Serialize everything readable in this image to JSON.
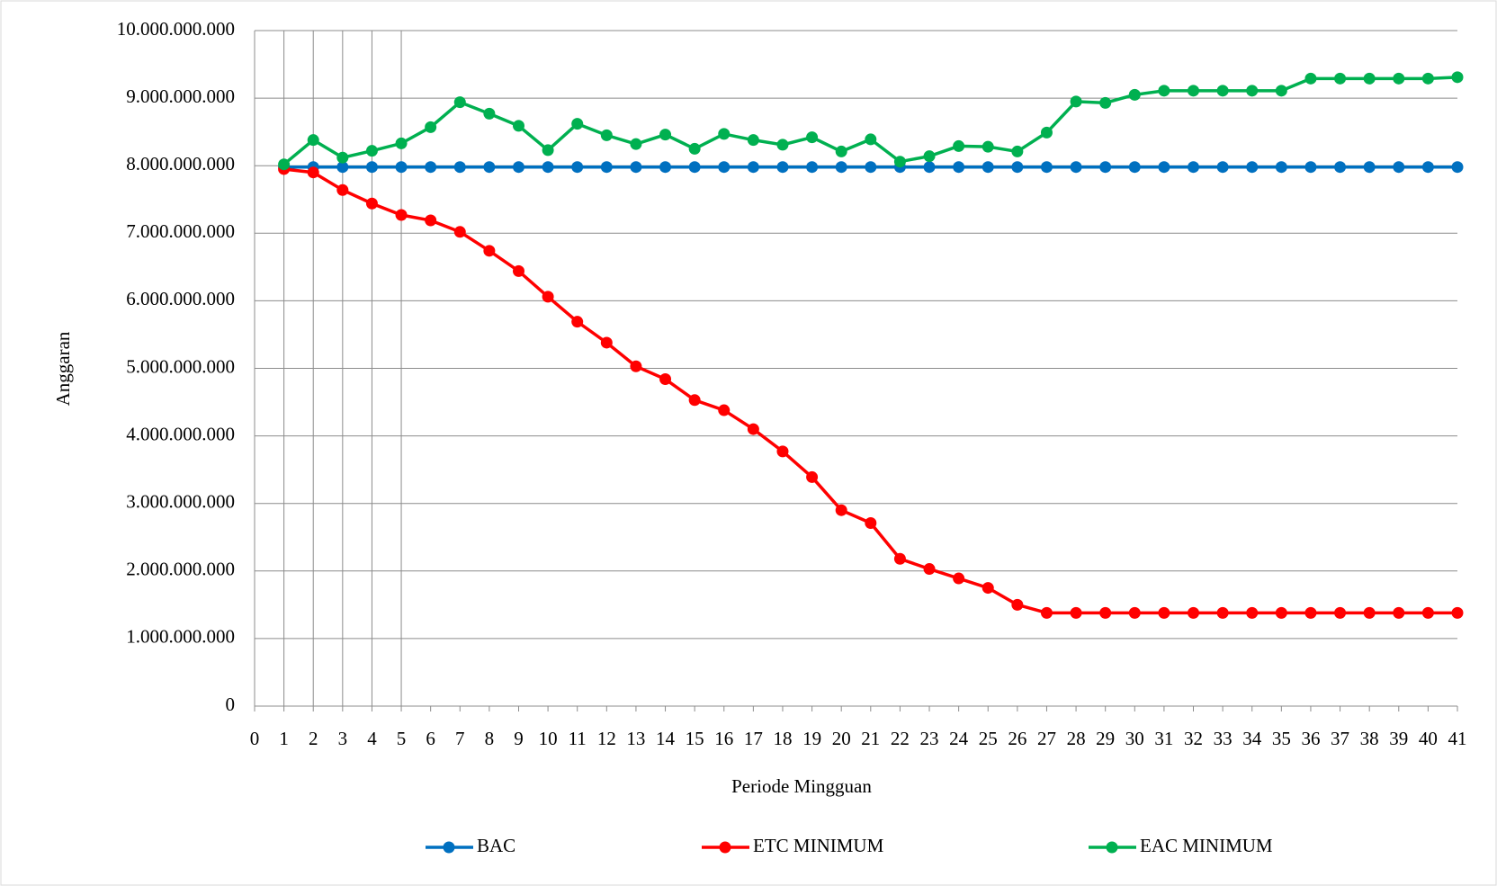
{
  "chart_data": {
    "type": "line",
    "xlabel": "Periode Mingguan",
    "ylabel": "Anggaran",
    "x": [
      1,
      2,
      3,
      4,
      5,
      6,
      7,
      8,
      9,
      10,
      11,
      12,
      13,
      14,
      15,
      16,
      17,
      18,
      19,
      20,
      21,
      22,
      23,
      24,
      25,
      26,
      27,
      28,
      29,
      30,
      31,
      32,
      33,
      34,
      35,
      36,
      37,
      38,
      39,
      40,
      41
    ],
    "series": [
      {
        "name": "BAC",
        "color": "#0070c0",
        "values": [
          7980000000,
          7980000000,
          7980000000,
          7980000000,
          7980000000,
          7980000000,
          7980000000,
          7980000000,
          7980000000,
          7980000000,
          7980000000,
          7980000000,
          7980000000,
          7980000000,
          7980000000,
          7980000000,
          7980000000,
          7980000000,
          7980000000,
          7980000000,
          7980000000,
          7980000000,
          7980000000,
          7980000000,
          7980000000,
          7980000000,
          7980000000,
          7980000000,
          7980000000,
          7980000000,
          7980000000,
          7980000000,
          7980000000,
          7980000000,
          7980000000,
          7980000000,
          7980000000,
          7980000000,
          7980000000,
          7980000000,
          7980000000
        ]
      },
      {
        "name": "ETC MINIMUM",
        "color": "#ff0000",
        "values": [
          7950000000,
          7900000000,
          7640000000,
          7440000000,
          7270000000,
          7190000000,
          7020000000,
          6740000000,
          6440000000,
          6060000000,
          5690000000,
          5380000000,
          5030000000,
          4840000000,
          4530000000,
          4380000000,
          4100000000,
          3770000000,
          3390000000,
          2900000000,
          2710000000,
          2180000000,
          2030000000,
          1890000000,
          1750000000,
          1500000000,
          1380000000,
          1380000000,
          1380000000,
          1380000000,
          1380000000,
          1380000000,
          1380000000,
          1380000000,
          1380000000,
          1380000000,
          1380000000,
          1380000000,
          1380000000,
          1380000000,
          1380000000
        ]
      },
      {
        "name": "EAC MINIMUM",
        "color": "#00b050",
        "values": [
          8020000000,
          8380000000,
          8120000000,
          8220000000,
          8330000000,
          8570000000,
          8940000000,
          8770000000,
          8590000000,
          8230000000,
          8620000000,
          8450000000,
          8320000000,
          8460000000,
          8250000000,
          8470000000,
          8380000000,
          8310000000,
          8420000000,
          8210000000,
          8390000000,
          8060000000,
          8140000000,
          8290000000,
          8280000000,
          8210000000,
          8490000000,
          8950000000,
          8930000000,
          9050000000,
          9110000000,
          9110000000,
          9110000000,
          9110000000,
          9110000000,
          9290000000,
          9290000000,
          9290000000,
          9290000000,
          9290000000,
          9310000000
        ]
      }
    ],
    "xlim": [
      0,
      41
    ],
    "xticks": [
      0,
      1,
      2,
      3,
      4,
      5,
      6,
      7,
      8,
      9,
      10,
      11,
      12,
      13,
      14,
      15,
      16,
      17,
      18,
      19,
      20,
      21,
      22,
      23,
      24,
      25,
      26,
      27,
      28,
      29,
      30,
      31,
      32,
      33,
      34,
      35,
      36,
      37,
      38,
      39,
      40,
      41
    ],
    "ylim": [
      0,
      10000000000
    ],
    "yticks": [
      0,
      {
        "value": 1000000000,
        "label": "1.000.000.000"
      },
      {
        "value": 2000000000,
        "label": "2.000.000.000"
      },
      {
        "value": 3000000000,
        "label": "3.000.000.000"
      },
      {
        "value": 4000000000,
        "label": "4.000.000.000"
      },
      {
        "value": 5000000000,
        "label": "5.000.000.000"
      },
      {
        "value": 6000000000,
        "label": "6.000.000.000"
      },
      {
        "value": 7000000000,
        "label": "7.000.000.000"
      },
      {
        "value": 8000000000,
        "label": "8.000.000.000"
      },
      {
        "value": 9000000000,
        "label": "9.000.000.000"
      },
      {
        "value": 10000000000,
        "label": "10.000.000.000"
      }
    ],
    "grid": true,
    "xgrid": [
      1,
      2,
      3,
      4,
      5
    ],
    "legend": "bottom"
  }
}
